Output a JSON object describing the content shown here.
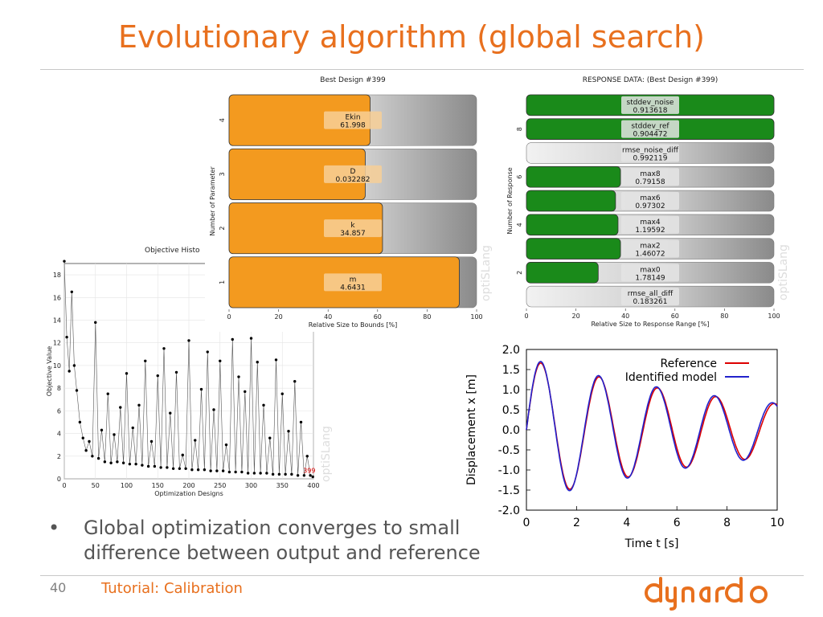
{
  "slide": {
    "title": "Evolutionary algorithm (global search)",
    "bullet": "Global optimization converges to small difference between output and reference",
    "page_number": "40",
    "footer": "Tutorial: Calibration",
    "logo_text": "dynardo"
  },
  "colors": {
    "accent": "#e8701e",
    "orange_bar": "#f39a1f",
    "green_bar": "#1a8a1a",
    "reference": "#dd0000",
    "model": "#2222cc"
  },
  "chart_data": [
    {
      "type": "scatter",
      "title": "Objective Histo",
      "xlabel": "Optimization Designs",
      "ylabel": "Objective Value",
      "xlim": [
        0,
        400
      ],
      "ylim": [
        0,
        19
      ],
      "xticks": [
        "0",
        "50",
        "100",
        "150",
        "200",
        "250",
        "300",
        "350",
        "400"
      ],
      "yticks": [
        "0",
        "2",
        "4",
        "6",
        "8",
        "10",
        "12",
        "14",
        "16",
        "18"
      ],
      "watermark": "optiSLang",
      "best_label": "399",
      "x": [
        0,
        4,
        8,
        12,
        16,
        20,
        25,
        30,
        35,
        40,
        45,
        50,
        55,
        60,
        65,
        70,
        75,
        80,
        85,
        90,
        95,
        100,
        105,
        110,
        115,
        120,
        125,
        130,
        135,
        140,
        145,
        150,
        155,
        160,
        165,
        170,
        175,
        180,
        185,
        190,
        195,
        200,
        205,
        210,
        215,
        220,
        225,
        230,
        235,
        240,
        245,
        250,
        255,
        260,
        265,
        270,
        275,
        280,
        285,
        290,
        295,
        300,
        305,
        310,
        315,
        320,
        325,
        330,
        335,
        340,
        345,
        350,
        355,
        360,
        365,
        370,
        375,
        380,
        385,
        390,
        395,
        399
      ],
      "y": [
        19.2,
        12.5,
        9.5,
        16.5,
        10.0,
        7.8,
        5.0,
        3.6,
        2.5,
        3.3,
        2.0,
        13.8,
        1.8,
        4.3,
        1.5,
        7.5,
        1.4,
        3.9,
        1.5,
        6.3,
        1.4,
        9.3,
        1.3,
        4.5,
        1.3,
        6.5,
        1.2,
        10.4,
        1.1,
        3.3,
        1.1,
        9.1,
        1.0,
        11.5,
        1.0,
        5.8,
        0.9,
        9.4,
        0.9,
        2.1,
        0.9,
        12.2,
        0.8,
        3.4,
        0.8,
        7.9,
        0.8,
        11.2,
        0.7,
        6.1,
        0.7,
        10.4,
        0.7,
        3.0,
        0.6,
        12.3,
        0.6,
        9.0,
        0.6,
        7.7,
        0.5,
        12.4,
        0.5,
        10.3,
        0.5,
        6.5,
        0.5,
        3.6,
        0.4,
        10.5,
        0.4,
        7.5,
        0.4,
        4.2,
        0.4,
        8.6,
        0.3,
        5.0,
        0.3,
        2.0,
        0.3,
        0.18
      ]
    },
    {
      "type": "bar",
      "orientation": "horizontal",
      "title": "Best Design #399",
      "xlabel": "Relative Size to Bounds [%]",
      "ylabel": "Number of Parameter",
      "xlim": [
        0,
        100
      ],
      "xticks": [
        "0",
        "20",
        "40",
        "60",
        "80",
        "100"
      ],
      "yticks": [
        "1",
        "2",
        "3",
        "4"
      ],
      "watermark": "optiSLang",
      "bars": [
        {
          "name": "Ekin",
          "value_label": "61.998",
          "percent": 57
        },
        {
          "name": "D",
          "value_label": "0.032282",
          "percent": 55
        },
        {
          "name": "k",
          "value_label": "34.857",
          "percent": 62
        },
        {
          "name": "m",
          "value_label": "4.6431",
          "percent": 93
        }
      ]
    },
    {
      "type": "bar",
      "orientation": "horizontal",
      "title": "RESPONSE DATA: (Best Design #399)",
      "xlabel": "Relative Size to Response Range [%]",
      "ylabel": "Number of Response",
      "xlim": [
        0,
        100
      ],
      "xticks": [
        "0",
        "20",
        "40",
        "60",
        "80",
        "100"
      ],
      "yticks": [
        "2",
        "4",
        "6",
        "8"
      ],
      "watermark": "optiSLang",
      "bars": [
        {
          "name": "stddev_noise",
          "value_label": "0.913618",
          "percent": 100
        },
        {
          "name": "stddev_ref",
          "value_label": "0.904472",
          "percent": 100
        },
        {
          "name": "rmse_noise_diff",
          "value_label": "0.992119",
          "percent": 0
        },
        {
          "name": "max8",
          "value_label": "0.79158",
          "percent": 38
        },
        {
          "name": "max6",
          "value_label": "0.97302",
          "percent": 36
        },
        {
          "name": "max4",
          "value_label": "1.19592",
          "percent": 37
        },
        {
          "name": "max2",
          "value_label": "1.46072",
          "percent": 38
        },
        {
          "name": "max0",
          "value_label": "1.78149",
          "percent": 29
        },
        {
          "name": "rmse_all_diff",
          "value_label": "0.183261",
          "percent": 0
        }
      ]
    },
    {
      "type": "line",
      "xlabel": "Time t [s]",
      "ylabel": "Displacement x [m]",
      "xlim": [
        0,
        10
      ],
      "ylim": [
        -2.0,
        2.0
      ],
      "xticks": [
        "0",
        "2",
        "4",
        "6",
        "8",
        "10"
      ],
      "yticks": [
        "2.0",
        "1.5",
        "1.0",
        "0.5",
        "0.0",
        "-0.5",
        "-1.0",
        "-1.5",
        "-2.0"
      ],
      "legend": "top-right",
      "series": [
        {
          "name": "Reference",
          "color": "#dd0000",
          "amplitude": 1.76,
          "decay": 0.1,
          "omega": 2.7,
          "dt": 0.1
        },
        {
          "name": "Identified model",
          "color": "#2222cc",
          "amplitude": 1.8,
          "decay": 0.1,
          "omega": 2.72,
          "dt": 0.1
        }
      ]
    }
  ]
}
